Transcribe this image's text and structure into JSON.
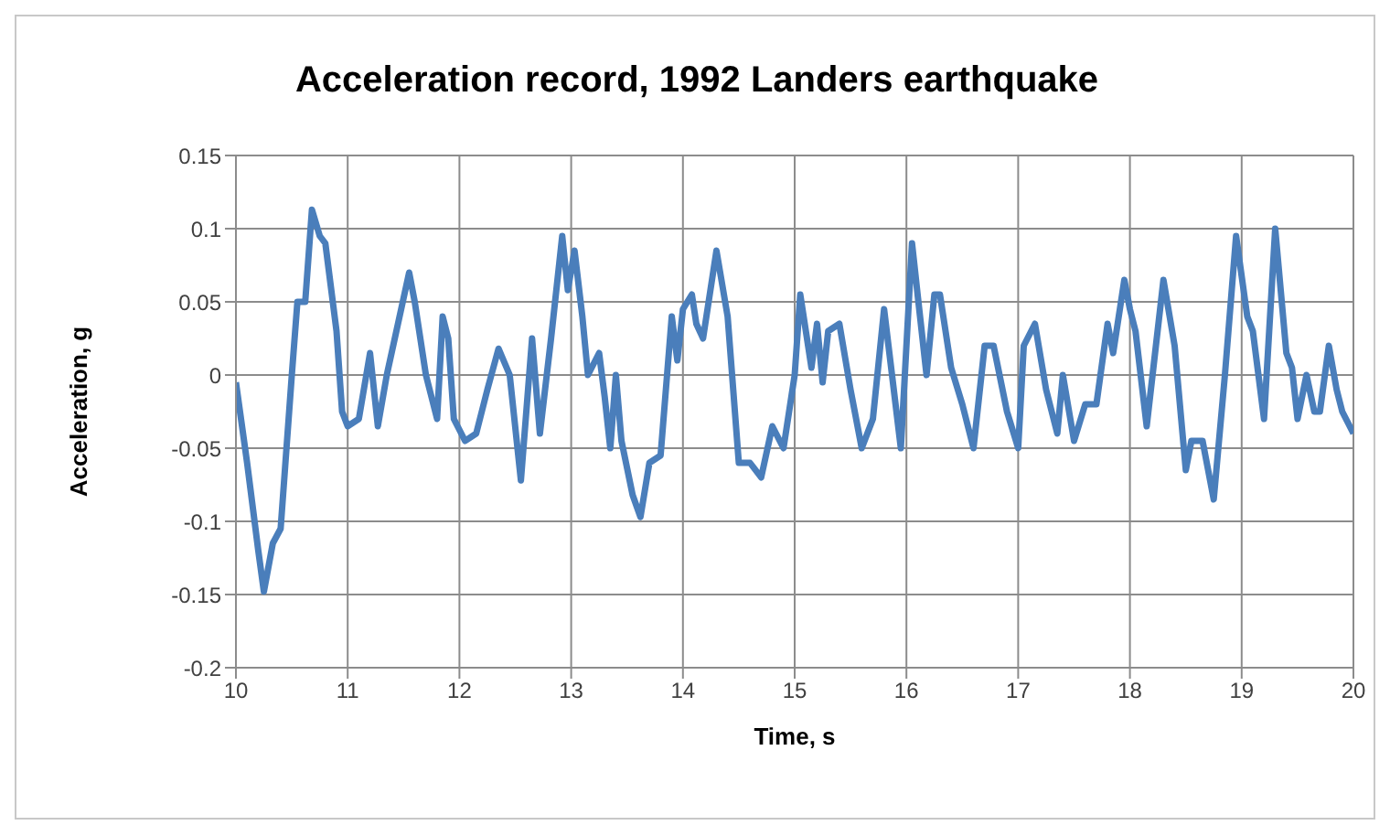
{
  "chart_data": {
    "type": "line",
    "title": "Acceleration record, 1992 Landers earthquake",
    "xlabel": "Time, s",
    "ylabel": "Acceleration, g",
    "xlim": [
      10,
      20
    ],
    "xticks": [
      10,
      11,
      12,
      13,
      14,
      15,
      16,
      17,
      18,
      19,
      20
    ],
    "ylim": [
      -0.2,
      0.15
    ],
    "yticks": [
      -0.2,
      -0.15,
      -0.1,
      -0.05,
      0,
      0.05,
      0.1,
      0.15
    ],
    "grid": true,
    "legend": false,
    "marker": "none",
    "line_style": "solid",
    "x": [
      10.0,
      10.1,
      10.2,
      10.25,
      10.33,
      10.4,
      10.5,
      10.55,
      10.62,
      10.68,
      10.75,
      10.8,
      10.9,
      10.95,
      11.0,
      11.1,
      11.2,
      11.27,
      11.35,
      11.45,
      11.55,
      11.6,
      11.7,
      11.8,
      11.85,
      11.9,
      11.95,
      12.05,
      12.15,
      12.25,
      12.35,
      12.45,
      12.55,
      12.65,
      12.72,
      12.82,
      12.92,
      12.97,
      13.03,
      13.1,
      13.15,
      13.25,
      13.3,
      13.35,
      13.4,
      13.45,
      13.55,
      13.62,
      13.7,
      13.8,
      13.9,
      13.95,
      14.0,
      14.08,
      14.12,
      14.18,
      14.3,
      14.4,
      14.5,
      14.6,
      14.7,
      14.8,
      14.9,
      15.0,
      15.05,
      15.15,
      15.2,
      15.25,
      15.3,
      15.4,
      15.5,
      15.6,
      15.7,
      15.8,
      15.95,
      16.05,
      16.1,
      16.18,
      16.25,
      16.3,
      16.4,
      16.5,
      16.6,
      16.7,
      16.78,
      16.9,
      17.0,
      17.05,
      17.15,
      17.25,
      17.35,
      17.4,
      17.5,
      17.6,
      17.7,
      17.8,
      17.85,
      17.95,
      18.0,
      18.05,
      18.15,
      18.3,
      18.4,
      18.5,
      18.55,
      18.65,
      18.75,
      18.85,
      18.95,
      19.05,
      19.1,
      19.2,
      19.3,
      19.4,
      19.45,
      19.5,
      19.58,
      19.65,
      19.7,
      19.78,
      19.85,
      19.9,
      20.0
    ],
    "series": [
      {
        "color": "#4a7ebb",
        "values": [
          -0.005,
          -0.06,
          -0.12,
          -0.148,
          -0.115,
          -0.105,
          0.0,
          0.05,
          0.05,
          0.113,
          0.095,
          0.09,
          0.03,
          -0.025,
          -0.035,
          -0.03,
          0.015,
          -0.035,
          0.0,
          0.035,
          0.07,
          0.05,
          0.0,
          -0.03,
          0.04,
          0.025,
          -0.03,
          -0.045,
          -0.04,
          -0.01,
          0.018,
          0.0,
          -0.072,
          0.025,
          -0.04,
          0.025,
          0.095,
          0.058,
          0.085,
          0.04,
          0.0,
          0.015,
          -0.015,
          -0.05,
          0.0,
          -0.045,
          -0.082,
          -0.097,
          -0.06,
          -0.055,
          0.04,
          0.01,
          0.045,
          0.055,
          0.035,
          0.025,
          0.085,
          0.04,
          -0.06,
          -0.06,
          -0.07,
          -0.035,
          -0.05,
          0.0,
          0.055,
          0.005,
          0.035,
          -0.005,
          0.03,
          0.035,
          -0.01,
          -0.05,
          -0.03,
          0.045,
          -0.05,
          0.09,
          0.055,
          0.0,
          0.055,
          0.055,
          0.005,
          -0.02,
          -0.05,
          0.02,
          0.02,
          -0.025,
          -0.05,
          0.02,
          0.035,
          -0.01,
          -0.04,
          0.0,
          -0.045,
          -0.02,
          -0.02,
          0.035,
          0.015,
          0.065,
          0.045,
          0.03,
          -0.035,
          0.065,
          0.02,
          -0.065,
          -0.045,
          -0.045,
          -0.085,
          0.0,
          0.095,
          0.04,
          0.03,
          -0.03,
          0.1,
          0.015,
          0.005,
          -0.03,
          0.0,
          -0.025,
          -0.025,
          0.02,
          -0.01,
          -0.025,
          -0.04
        ]
      }
    ]
  }
}
